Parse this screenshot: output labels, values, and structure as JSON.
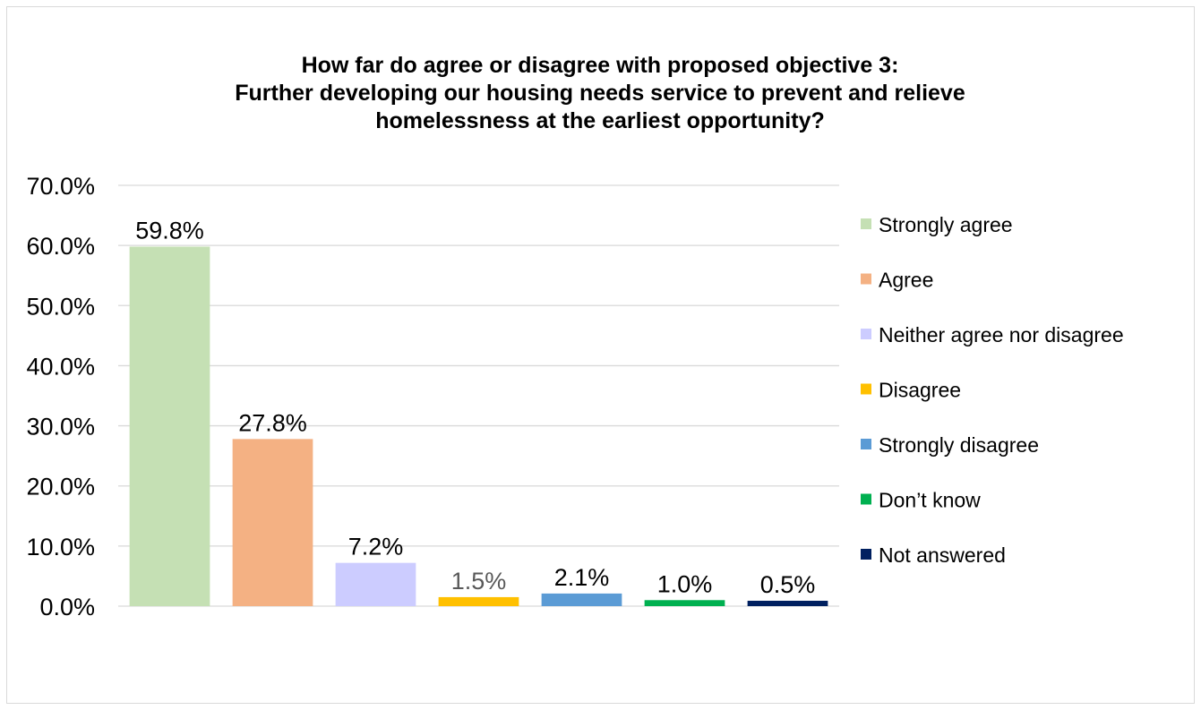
{
  "chart_data": {
    "type": "bar",
    "title": "How far do agree or disagree with proposed objective 3:\nFurther developing our housing needs service to prevent and relieve\nhomelessness at the earliest opportunity?",
    "xlabel": "",
    "ylabel": "",
    "ylim": [
      0,
      70
    ],
    "yticks": [
      0,
      10,
      20,
      30,
      40,
      50,
      60,
      70
    ],
    "ytick_labels": [
      "0.0%",
      "10.0%",
      "20.0%",
      "30.0%",
      "40.0%",
      "50.0%",
      "60.0%",
      "70.0%"
    ],
    "grid": true,
    "legend_position": "right",
    "categories": [
      "Strongly agree",
      "Agree",
      "Neither agree nor disagree",
      "Disagree",
      "Strongly disagree",
      "Don’t know",
      "Not answered"
    ],
    "values": [
      59.8,
      27.8,
      7.2,
      1.5,
      2.1,
      1.0,
      0.5
    ],
    "data_labels": [
      "59.8%",
      "27.8%",
      "7.2%",
      "1.5%",
      "2.1%",
      "1.0%",
      "0.5%"
    ],
    "colors": [
      "#c5e0b4",
      "#f4b183",
      "#ccccff",
      "#ffc000",
      "#5b9bd5",
      "#00b050",
      "#002060"
    ],
    "label_colors": [
      "#000000",
      "#000000",
      "#000000",
      "#595959",
      "#000000",
      "#000000",
      "#000000"
    ]
  }
}
